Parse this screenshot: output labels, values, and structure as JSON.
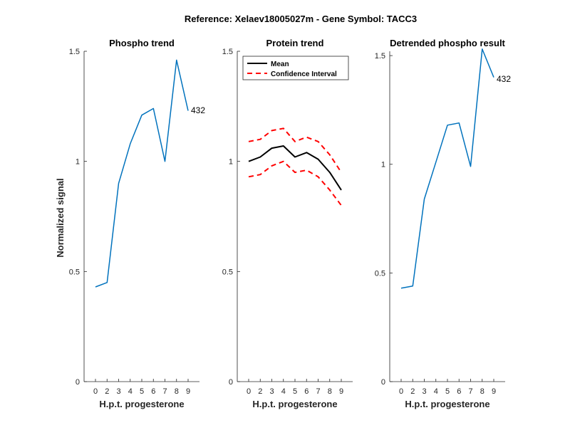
{
  "figure_title": "Reference:  Xelaev18005027m - Gene Symbol:  TACC3",
  "colors": {
    "phospho": "#0072BD",
    "mean": "#000000",
    "ci": "#FF0000",
    "axis": "#262626"
  },
  "chart_data": [
    {
      "type": "line",
      "title": "Phospho trend",
      "xlabel": "H.p.t. progesterone",
      "ylabel": "Normalized signal",
      "categories": [
        "0",
        "2",
        "3",
        "4",
        "5",
        "6",
        "7",
        "8",
        "9"
      ],
      "ylim": [
        0,
        1.5
      ],
      "yticks": [
        "0",
        "0.5",
        "1",
        "1.5"
      ],
      "series": [
        {
          "values": [
            0.43,
            0.45,
            0.9,
            1.08,
            1.21,
            1.24,
            1.0,
            1.46,
            1.23
          ]
        }
      ],
      "end_label": "432",
      "grid": false
    },
    {
      "type": "line",
      "title": "Protein trend",
      "xlabel": "H.p.t. progesterone",
      "ylabel": "",
      "categories": [
        "0",
        "2",
        "3",
        "4",
        "5",
        "6",
        "7",
        "8",
        "9"
      ],
      "ylim": [
        0,
        1.5
      ],
      "yticks": [
        "0",
        "0.5",
        "1",
        "1.5"
      ],
      "series": [
        {
          "name": "Mean",
          "style": "solid",
          "values": [
            1.0,
            1.02,
            1.06,
            1.07,
            1.02,
            1.04,
            1.01,
            0.95,
            0.87
          ]
        },
        {
          "name": "Confidence Interval",
          "style": "dashed",
          "values": [
            1.09,
            1.1,
            1.14,
            1.15,
            1.09,
            1.11,
            1.09,
            1.03,
            0.95
          ]
        },
        {
          "style": "dashed",
          "values": [
            0.93,
            0.94,
            0.98,
            1.0,
            0.95,
            0.96,
            0.93,
            0.87,
            0.8
          ]
        }
      ],
      "legend": {
        "placement": "top-right",
        "entries": [
          "Mean",
          "Confidence Interval"
        ]
      },
      "grid": false
    },
    {
      "type": "line",
      "title": "Detrended phospho result",
      "xlabel": "H.p.t. progesterone",
      "ylabel": "",
      "categories": [
        "0",
        "2",
        "3",
        "4",
        "5",
        "6",
        "7",
        "8",
        "9"
      ],
      "ylim": [
        0,
        1.52
      ],
      "yticks": [
        "0",
        "0.5",
        "1",
        "1.5"
      ],
      "series": [
        {
          "values": [
            0.43,
            0.44,
            0.84,
            1.01,
            1.18,
            1.19,
            0.99,
            1.53,
            1.4
          ]
        }
      ],
      "end_label": "432",
      "grid": false
    }
  ]
}
